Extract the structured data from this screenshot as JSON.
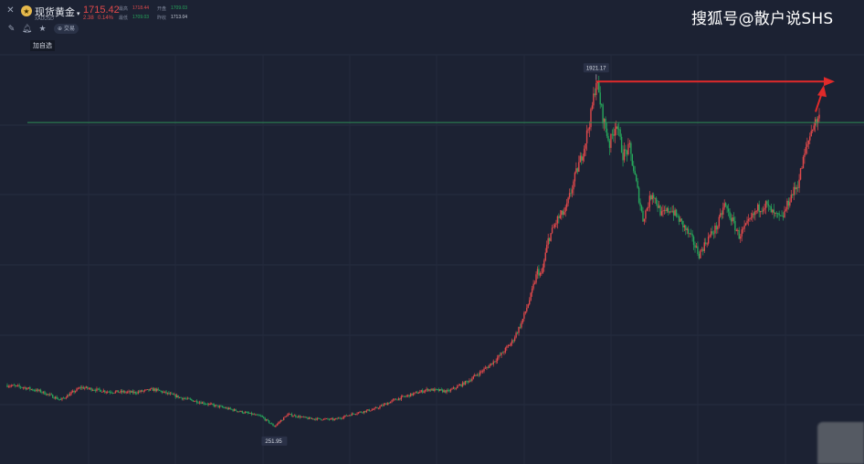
{
  "header": {
    "instrument_name": "现货黄金",
    "instrument_code": "XAUUSD",
    "last_price": "1715.42",
    "change": "2.38",
    "change_pct": "0.14%",
    "stats": [
      {
        "label": "最高",
        "value": "1718.44",
        "color": "#e0494b"
      },
      {
        "label": "开盘",
        "value": "1709.03",
        "color": "#26a65b"
      },
      {
        "label": "最低",
        "value": "1709.03",
        "color": "#26a65b"
      },
      {
        "label": "昨收",
        "value": "1713.04",
        "color": "#c8cdd8"
      }
    ],
    "trade_label": "交易",
    "watchlist_label": "加自选"
  },
  "watermark": "搜狐号@散户说SHS",
  "colors": {
    "up": "#e0494b",
    "down": "#26a65b",
    "background": "#1c2233",
    "arrow": "#e02a2a",
    "current_line": "#2e8c56"
  },
  "icons": {
    "close": "close-icon",
    "draw": "pencil-icon",
    "alert": "bell-icon",
    "favorite": "star-icon",
    "trade": "trade-icon",
    "symbol": "gold-coin-icon"
  },
  "chart_data": {
    "type": "candlestick",
    "title": "",
    "xlabel": "",
    "ylabel": "",
    "ylim": [
      150,
      2050
    ],
    "grid": true,
    "annotations": {
      "high": {
        "label": "1921.17",
        "value": 1921.17
      },
      "low": {
        "label": "251.95",
        "value": 251.95
      },
      "current_price_line": 1715.42
    },
    "trend_points": [
      [
        0,
        450
      ],
      [
        12,
        440
      ],
      [
        25,
        420
      ],
      [
        40,
        380
      ],
      [
        55,
        440
      ],
      [
        75,
        420
      ],
      [
        95,
        415
      ],
      [
        110,
        430
      ],
      [
        130,
        390
      ],
      [
        150,
        360
      ],
      [
        170,
        330
      ],
      [
        190,
        300
      ],
      [
        200,
        252
      ],
      [
        210,
        310
      ],
      [
        225,
        290
      ],
      [
        245,
        285
      ],
      [
        260,
        315
      ],
      [
        275,
        335
      ],
      [
        290,
        380
      ],
      [
        300,
        400
      ],
      [
        315,
        430
      ],
      [
        330,
        420
      ],
      [
        345,
        470
      ],
      [
        360,
        540
      ],
      [
        370,
        600
      ],
      [
        378,
        660
      ],
      [
        385,
        750
      ],
      [
        392,
        880
      ],
      [
        397,
        1000
      ],
      [
        400,
        980
      ],
      [
        405,
        1150
      ],
      [
        412,
        1250
      ],
      [
        418,
        1290
      ],
      [
        425,
        1450
      ],
      [
        432,
        1600
      ],
      [
        437,
        1750
      ],
      [
        441,
        1921
      ],
      [
        446,
        1740
      ],
      [
        451,
        1610
      ],
      [
        456,
        1720
      ],
      [
        461,
        1560
      ],
      [
        466,
        1590
      ],
      [
        471,
        1420
      ],
      [
        476,
        1250
      ],
      [
        483,
        1380
      ],
      [
        490,
        1270
      ],
      [
        497,
        1300
      ],
      [
        505,
        1230
      ],
      [
        512,
        1160
      ],
      [
        518,
        1080
      ],
      [
        525,
        1160
      ],
      [
        532,
        1220
      ],
      [
        537,
        1320
      ],
      [
        543,
        1240
      ],
      [
        548,
        1170
      ],
      [
        555,
        1230
      ],
      [
        562,
        1300
      ],
      [
        568,
        1320
      ],
      [
        574,
        1270
      ],
      [
        580,
        1250
      ],
      [
        586,
        1350
      ],
      [
        592,
        1420
      ],
      [
        597,
        1560
      ],
      [
        603,
        1700
      ],
      [
        608,
        1740
      ]
    ]
  }
}
